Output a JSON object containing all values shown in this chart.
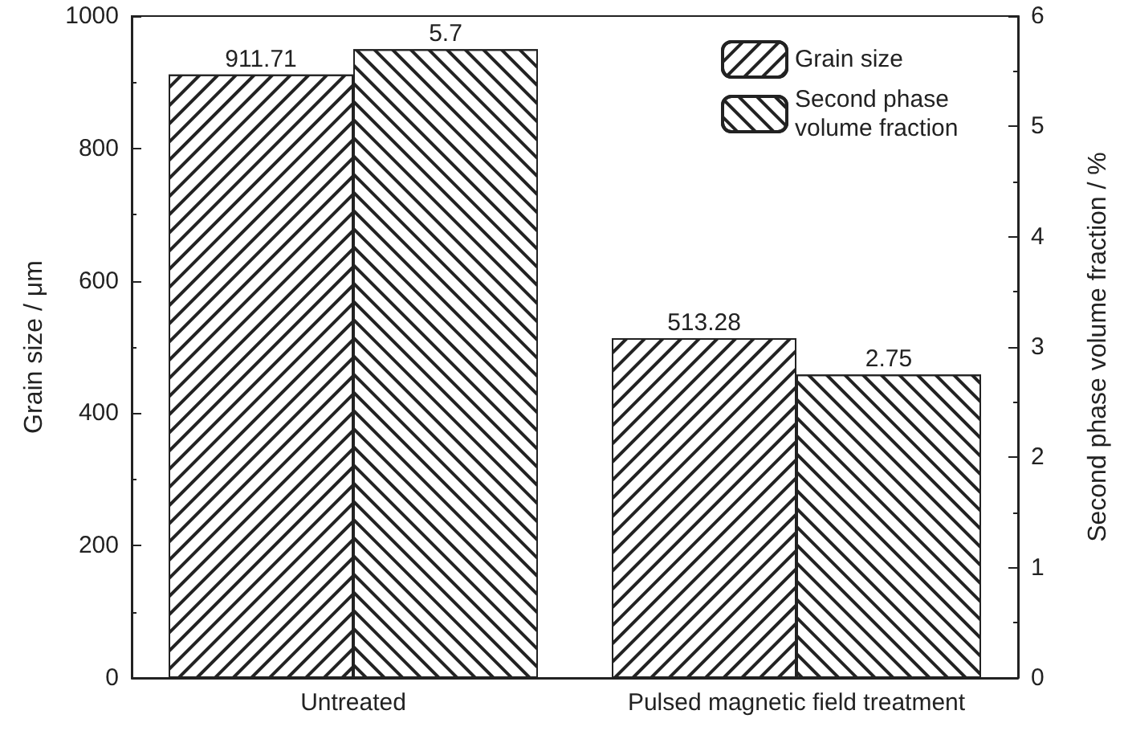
{
  "chart_data": {
    "type": "bar",
    "xlabel": null,
    "ylabel": "Grain size / μm",
    "y2label": "Second phase volume fraction / %",
    "categories": [
      "Untreated",
      "Pulsed magnetic field treatment"
    ],
    "series": [
      {
        "name": "Grain size",
        "color": "#ffffff",
        "values": [
          911.71,
          513.28
        ]
      },
      {
        "name": "Second phase volume fraction",
        "color": "#ffffff",
        "values": [
          5.7,
          2.75
        ],
        "axis": "y2"
      }
    ],
    "ylim": [
      0,
      1000
    ],
    "yticks": [
      0,
      200,
      400,
      600,
      800,
      1000
    ],
    "y2lim": [
      0,
      6
    ],
    "y2ticks": [
      0,
      1,
      2,
      3,
      4,
      5,
      6
    ],
    "data_labels": true,
    "legend": "top right",
    "grid": false
  }
}
